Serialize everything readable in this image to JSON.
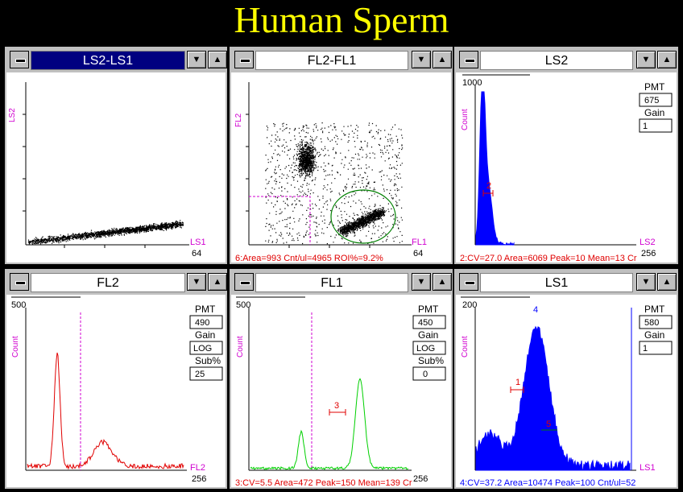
{
  "title": "Human Sperm",
  "icons": {
    "system_menu": "minus-icon",
    "minimize": "triangle-down-icon",
    "maximize": "triangle-up-icon"
  },
  "colors": {
    "red": "#e00000",
    "green": "#00d000",
    "blue": "#0000ff",
    "magenta": "#d000d0",
    "title": "#ffff00"
  },
  "windows": {
    "ls2ls1": {
      "title": "LS2-LS1",
      "xlabel": "LS1",
      "ylabel": "LS2",
      "xmax": "64",
      "footer": ""
    },
    "fl2fl1": {
      "title": "FL2-FL1",
      "xlabel": "FL1",
      "ylabel": "FL2",
      "xmax": "64",
      "footer": "6:Area=993 Cnt/ul=4965 ROI%=9.2%"
    },
    "ls2": {
      "title": "LS2",
      "ytop": "1000",
      "ylabel": "Count",
      "xlabel": "LS2",
      "xmax": "256",
      "pmt_label": "PMT",
      "pmt": "675",
      "gain_label": "Gain",
      "gain": "1",
      "marker": "2",
      "footer": "2:CV=27.0 Area=6069 Peak=10 Mean=13 Cr"
    },
    "fl2": {
      "title": "FL2",
      "ytop": "500",
      "ylabel": "Count",
      "xlabel": "FL2",
      "xmax": "256",
      "pmt_label": "PMT",
      "pmt": "490",
      "gain_label": "Gain",
      "gain": "LOG",
      "sub_label": "Sub%",
      "sub": "25",
      "footer": ""
    },
    "fl1": {
      "title": "FL1",
      "ytop": "500",
      "ylabel": "Count",
      "xlabel": "FL1",
      "xmax": "256",
      "pmt_label": "PMT",
      "pmt": "450",
      "gain_label": "Gain",
      "gain": "LOG",
      "sub_label": "Sub%",
      "sub": "0",
      "marker": "3",
      "footer": "3:CV=5.5 Area=472 Peak=150 Mean=139 Cr"
    },
    "ls1": {
      "title": "LS1",
      "ytop": "200",
      "ylabel": "Count",
      "xlabel": "LS1",
      "xmax": "",
      "pmt_label": "PMT",
      "pmt": "580",
      "gain_label": "Gain",
      "gain": "1",
      "marker1": "1",
      "marker4": "4",
      "marker5": "5",
      "footer": "4:CV=37.2 Area=10474 Peak=100 Cnt/ul=52"
    }
  }
}
